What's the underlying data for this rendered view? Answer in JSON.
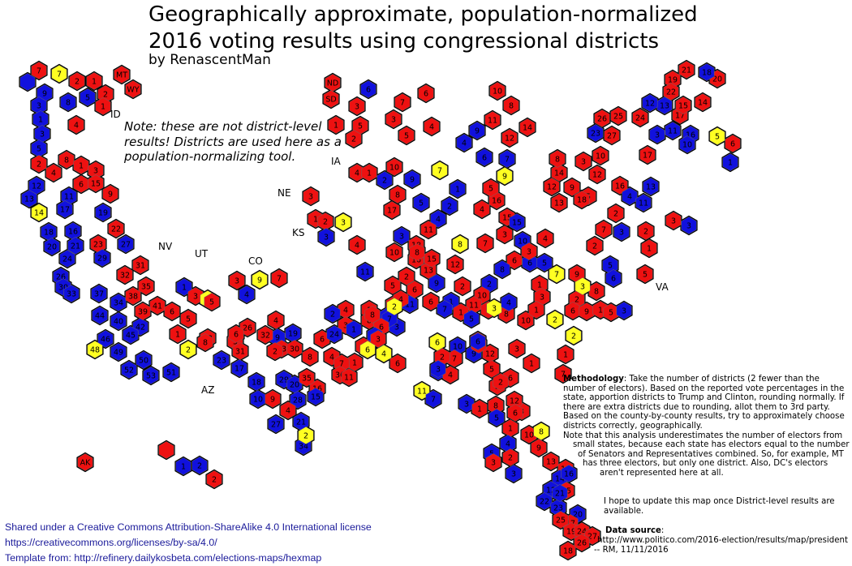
{
  "title_line1": "Geographically approximate, population-normalized",
  "title_line2": "2016 voting results using congressional districts",
  "byline": "by RenascentMan",
  "note": "Note: these are not district-level results!  Districts are used here as a population-normalizing tool.",
  "methodology": {
    "heading": "Methodology",
    "p1": ": Take the number of districts (2 fewer than the number of electors). Based on the reported vote percentages in the state, apportion districts to Trump and Clinton, rounding normally.  If there are extra districts due to rounding, allot them to 3rd party.  Based on the county-by-county results, try to approximately choose districts correctly, geographically.",
    "p2": "Note that this analysis underestimates the number of electors from",
    "p3": "small states, because each state has electors equal to the number",
    "p4": "of Senators and Representatives combined.  So, for example, MT",
    "p5": "has three electors, but only one district.  Also, DC's electors",
    "p6": "aren't represented here at all."
  },
  "hope": "I hope to update this map once District-level results are available.",
  "source": {
    "heading": "Data source",
    "colon": ":",
    "url": "http://www.politico.com/2016-election/results/map/president",
    "sig": "-- RM, 11/11/2016"
  },
  "license": {
    "line1": "Shared under a Creative Commons Attribution-ShareAlike 4.0 International license",
    "line2": "https://creativecommons.org/licenses/by-sa/4.0/",
    "line3": "Template from: http://refinery.dailykosbeta.com/elections-maps/hexmap"
  },
  "state_labels": {
    "id": "ID",
    "nv": "NV",
    "ut": "UT",
    "co": "CO",
    "az": "AZ",
    "ia": "IA",
    "ne": "NE",
    "ks": "KS",
    "va": "VA"
  },
  "legend_colors": {
    "trump": "#ee1111",
    "clinton": "#1111dd",
    "third_party": "#ffff22"
  },
  "districts": [
    {
      "c": "b",
      "n": ""
    },
    {
      "c": "r",
      "n": "7"
    },
    {
      "c": "y",
      "n": "7"
    },
    {
      "c": "r",
      "n": "2"
    },
    {
      "c": "r",
      "n": "1"
    },
    {
      "c": "r",
      "n": "MT"
    },
    {
      "c": "r",
      "n": "WY"
    },
    {
      "c": "b",
      "n": "9"
    },
    {
      "c": "b",
      "n": "3"
    },
    {
      "c": "b",
      "n": "8"
    },
    {
      "c": "b",
      "n": "5"
    },
    {
      "c": "r",
      "n": "2"
    },
    {
      "c": "r",
      "n": "1"
    },
    {
      "c": "b",
      "n": "1"
    },
    {
      "c": "b",
      "n": "3"
    },
    {
      "c": "b",
      "n": "5"
    },
    {
      "c": "r",
      "n": "4"
    },
    {
      "c": "r",
      "n": "2"
    },
    {
      "c": "r",
      "n": "4"
    },
    {
      "c": "r",
      "n": "8"
    },
    {
      "c": "r",
      "n": "1"
    },
    {
      "c": "r",
      "n": "3"
    },
    {
      "c": "b",
      "n": "12"
    },
    {
      "c": "b",
      "n": "11"
    },
    {
      "c": "r",
      "n": "6"
    },
    {
      "c": "r",
      "n": "15"
    },
    {
      "c": "r",
      "n": "9"
    },
    {
      "c": "b",
      "n": "13"
    },
    {
      "c": "y",
      "n": "14"
    },
    {
      "c": "b",
      "n": "17"
    },
    {
      "c": "b",
      "n": "16"
    },
    {
      "c": "b",
      "n": "19"
    },
    {
      "c": "r",
      "n": "22"
    },
    {
      "c": "b",
      "n": "18"
    },
    {
      "c": "b",
      "n": "20"
    },
    {
      "c": "b",
      "n": "21"
    },
    {
      "c": "r",
      "n": "23"
    },
    {
      "c": "b",
      "n": "27"
    },
    {
      "c": "b",
      "n": "24"
    },
    {
      "c": "b",
      "n": "26"
    },
    {
      "c": "b",
      "n": "29"
    },
    {
      "c": "r",
      "n": "31"
    },
    {
      "c": "r",
      "n": "32"
    },
    {
      "c": "b",
      "n": "30"
    },
    {
      "c": "b",
      "n": "33"
    },
    {
      "c": "b",
      "n": "37"
    },
    {
      "c": "b",
      "n": "34"
    },
    {
      "c": "r",
      "n": "35"
    },
    {
      "c": "r",
      "n": "38"
    },
    {
      "c": "r",
      "n": "41"
    },
    {
      "c": "b",
      "n": "44"
    },
    {
      "c": "b",
      "n": "40"
    },
    {
      "c": "b",
      "n": "42"
    },
    {
      "c": "r",
      "n": "39"
    },
    {
      "c": "b",
      "n": "46"
    },
    {
      "c": "b",
      "n": "45"
    },
    {
      "c": "y",
      "n": "48"
    },
    {
      "c": "b",
      "n": "49"
    },
    {
      "c": "b",
      "n": "50"
    },
    {
      "c": "b",
      "n": "52"
    },
    {
      "c": "b",
      "n": "53"
    },
    {
      "c": "b",
      "n": "51"
    },
    {
      "c": "r",
      "n": "ND"
    },
    {
      "c": "r",
      "n": "SD"
    },
    {
      "c": "b",
      "n": "6"
    },
    {
      "c": "r",
      "n": "3"
    },
    {
      "c": "r",
      "n": "5"
    },
    {
      "c": "r",
      "n": "2"
    },
    {
      "c": "r",
      "n": "1"
    },
    {
      "c": "r",
      "n": "7"
    },
    {
      "c": "r",
      "n": "6"
    },
    {
      "c": "r",
      "n": "3"
    },
    {
      "c": "r",
      "n": "5"
    },
    {
      "c": "r",
      "n": "4"
    },
    {
      "c": "r",
      "n": "10"
    },
    {
      "c": "r",
      "n": "8"
    },
    {
      "c": "r",
      "n": "11"
    },
    {
      "c": "r",
      "n": "14"
    },
    {
      "c": "b",
      "n": "9"
    },
    {
      "c": "r",
      "n": "12"
    },
    {
      "c": "b",
      "n": "6"
    },
    {
      "c": "b",
      "n": "7"
    },
    {
      "c": "b",
      "n": "4"
    },
    {
      "c": "r",
      "n": "4"
    },
    {
      "c": "r",
      "n": "1"
    },
    {
      "c": "b",
      "n": "2"
    },
    {
      "c": "r",
      "n": "3"
    },
    {
      "c": "r",
      "n": "1"
    },
    {
      "c": "r",
      "n": "2"
    },
    {
      "c": "y",
      "n": "3"
    },
    {
      "c": "b",
      "n": "3"
    },
    {
      "c": "r",
      "n": "4"
    },
    {
      "c": "r",
      "n": "10"
    },
    {
      "c": "b",
      "n": "9"
    },
    {
      "c": "y",
      "n": "7"
    },
    {
      "c": "r",
      "n": "8"
    },
    {
      "c": "b",
      "n": "5"
    },
    {
      "c": "b",
      "n": "4"
    },
    {
      "c": "r",
      "n": "17"
    },
    {
      "c": "b",
      "n": "3"
    },
    {
      "c": "r",
      "n": "18"
    },
    {
      "c": "r",
      "n": "16"
    },
    {
      "c": "r",
      "n": "13"
    },
    {
      "c": "r",
      "n": "10"
    },
    {
      "c": "r",
      "n": "11"
    },
    {
      "c": "r",
      "n": "15"
    },
    {
      "c": "r",
      "n": "12"
    },
    {
      "c": "b",
      "n": "1"
    },
    {
      "c": "b",
      "n": "2"
    },
    {
      "c": "y",
      "n": "9"
    },
    {
      "c": "r",
      "n": "14"
    },
    {
      "c": "r",
      "n": "12"
    },
    {
      "c": "r",
      "n": "13"
    },
    {
      "c": "r",
      "n": "16"
    },
    {
      "c": "r",
      "n": "15"
    },
    {
      "c": "r",
      "n": "5"
    },
    {
      "c": "r",
      "n": "4"
    },
    {
      "c": "r",
      "n": "3"
    },
    {
      "c": "r",
      "n": "7"
    },
    {
      "c": "b",
      "n": "15"
    },
    {
      "c": "b",
      "n": "10"
    },
    {
      "c": "y",
      "n": "8"
    },
    {
      "c": "b",
      "n": "6"
    },
    {
      "c": "b",
      "n": "5"
    },
    {
      "c": "r",
      "n": "19"
    },
    {
      "c": "r",
      "n": "21"
    },
    {
      "c": "r",
      "n": "20"
    },
    {
      "c": "b",
      "n": "18"
    },
    {
      "c": "r",
      "n": "22"
    },
    {
      "c": "b",
      "n": "13"
    },
    {
      "c": "r",
      "n": "17"
    },
    {
      "c": "r",
      "n": "15"
    },
    {
      "c": "r",
      "n": "14"
    },
    {
      "c": "b",
      "n": "12"
    },
    {
      "c": "b",
      "n": "16"
    },
    {
      "c": "r",
      "n": "26"
    },
    {
      "c": "r",
      "n": "25"
    },
    {
      "c": "r",
      "n": "24"
    },
    {
      "c": "r",
      "n": "27"
    },
    {
      "c": "b",
      "n": "11"
    },
    {
      "c": "b",
      "n": "23"
    },
    {
      "c": "b",
      "n": "3"
    },
    {
      "c": "b",
      "n": "10"
    },
    {
      "c": "y",
      "n": "5"
    },
    {
      "c": "r",
      "n": "6"
    },
    {
      "c": "b",
      "n": "1"
    },
    {
      "c": "r",
      "n": "3"
    },
    {
      "c": "r",
      "n": "10"
    },
    {
      "c": "r",
      "n": "17"
    },
    {
      "c": "r",
      "n": "8"
    },
    {
      "c": "r",
      "n": "12"
    },
    {
      "c": "r",
      "n": "16"
    },
    {
      "c": "b",
      "n": "4"
    },
    {
      "c": "r",
      "n": "5"
    },
    {
      "c": "r",
      "n": "18"
    },
    {
      "c": "r",
      "n": "9"
    },
    {
      "c": "b",
      "n": "13"
    },
    {
      "c": "b",
      "n": "11"
    },
    {
      "c": "r",
      "n": "3"
    },
    {
      "c": "b",
      "n": "3"
    },
    {
      "c": "r",
      "n": "2"
    },
    {
      "c": "b",
      "n": "3"
    },
    {
      "c": "r",
      "n": "7"
    },
    {
      "c": "r",
      "n": "2"
    },
    {
      "c": "b",
      "n": "5"
    },
    {
      "c": "y",
      "n": "7"
    },
    {
      "c": "r",
      "n": "9"
    },
    {
      "c": "r",
      "n": "1"
    },
    {
      "c": "r",
      "n": "3"
    },
    {
      "c": "r",
      "n": "2"
    },
    {
      "c": "r",
      "n": "1"
    },
    {
      "c": "r",
      "n": "5"
    },
    {
      "c": "b",
      "n": "6"
    },
    {
      "c": "r",
      "n": "4"
    },
    {
      "c": "r",
      "n": "3"
    },
    {
      "c": "r",
      "n": "6"
    },
    {
      "c": "b",
      "n": "8"
    },
    {
      "c": "b",
      "n": "2"
    },
    {
      "c": "r",
      "n": "10"
    },
    {
      "c": "r",
      "n": "2"
    },
    {
      "c": "r",
      "n": "11"
    },
    {
      "c": "b",
      "n": "1"
    },
    {
      "c": "b",
      "n": "9"
    },
    {
      "c": "b",
      "n": "11"
    },
    {
      "c": "r",
      "n": "4"
    },
    {
      "c": "r",
      "n": "2"
    },
    {
      "c": "r",
      "n": "6"
    },
    {
      "c": "r",
      "n": "8"
    },
    {
      "c": "b",
      "n": "11"
    },
    {
      "c": "r",
      "n": "5"
    },
    {
      "c": "r",
      "n": "4"
    },
    {
      "c": "r",
      "n": "1"
    },
    {
      "c": "b",
      "n": "2"
    },
    {
      "c": "r",
      "n": "8"
    },
    {
      "c": "b",
      "n": "3"
    },
    {
      "c": "b",
      "n": "7"
    },
    {
      "c": "r",
      "n": "6"
    },
    {
      "c": "b",
      "n": "4"
    },
    {
      "c": "r",
      "n": "6"
    },
    {
      "c": "b",
      "n": "7"
    },
    {
      "c": "r",
      "n": "1"
    },
    {
      "c": "b",
      "n": "5"
    },
    {
      "c": "r",
      "n": "8"
    },
    {
      "c": "r",
      "n": "10"
    },
    {
      "c": "r",
      "n": "1"
    },
    {
      "c": "y",
      "n": "2"
    },
    {
      "c": "r",
      "n": "3"
    },
    {
      "c": "y",
      "n": "3"
    },
    {
      "c": "b",
      "n": "4"
    },
    {
      "c": "r",
      "n": "2"
    },
    {
      "c": "r",
      "n": "6"
    },
    {
      "c": "r",
      "n": "9"
    },
    {
      "c": "r",
      "n": "1"
    },
    {
      "c": "r",
      "n": "5"
    },
    {
      "c": "b",
      "n": "3"
    },
    {
      "c": "r",
      "n": "8"
    },
    {
      "c": "y",
      "n": "3"
    },
    {
      "c": "r",
      "n": "4"
    },
    {
      "c": "b",
      "n": "2"
    },
    {
      "c": "r",
      "n": "3"
    },
    {
      "c": "b",
      "n": "1"
    },
    {
      "c": "r",
      "n": "4"
    },
    {
      "c": "r",
      "n": "6"
    },
    {
      "c": "y",
      "n": "4"
    },
    {
      "c": "r",
      "n": "3"
    },
    {
      "c": "b",
      "n": "10"
    },
    {
      "c": "r",
      "n": "7"
    },
    {
      "c": "r",
      "n": "13"
    },
    {
      "c": "r",
      "n": "12"
    },
    {
      "c": "b",
      "n": "9"
    },
    {
      "c": "b",
      "n": "8"
    },
    {
      "c": "r",
      "n": "4"
    },
    {
      "c": "r",
      "n": "5"
    },
    {
      "c": "r",
      "n": "6"
    },
    {
      "c": "r",
      "n": "7"
    },
    {
      "c": "r",
      "n": "3"
    },
    {
      "c": "r",
      "n": "1"
    },
    {
      "c": "y",
      "n": "2"
    },
    {
      "c": "r",
      "n": "1"
    },
    {
      "c": "y",
      "n": "2"
    },
    {
      "c": "r",
      "n": "8"
    },
    {
      "c": "r",
      "n": "5"
    },
    {
      "c": "r",
      "n": "4"
    },
    {
      "c": "b",
      "n": "9"
    },
    {
      "c": "r",
      "n": "6"
    },
    {
      "c": "r",
      "n": "13"
    },
    {
      "c": "r",
      "n": "26"
    },
    {
      "c": "r",
      "n": "32"
    },
    {
      "c": "b",
      "n": "19"
    },
    {
      "c": "b",
      "n": "24"
    },
    {
      "c": "r",
      "n": "33"
    },
    {
      "c": "r",
      "n": "30"
    },
    {
      "c": "r",
      "n": "2"
    },
    {
      "c": "r",
      "n": "8"
    },
    {
      "c": "r",
      "n": "4"
    },
    {
      "c": "y",
      "n": "6"
    },
    {
      "c": "r",
      "n": "1"
    },
    {
      "c": "r",
      "n": "7"
    },
    {
      "c": "r",
      "n": "36"
    },
    {
      "c": "r",
      "n": "16"
    },
    {
      "c": "r",
      "n": "11"
    },
    {
      "c": "b",
      "n": "23"
    },
    {
      "c": "r",
      "n": "31"
    },
    {
      "c": "b",
      "n": "17"
    },
    {
      "c": "b",
      "n": "18"
    },
    {
      "c": "b",
      "n": "29"
    },
    {
      "c": "b",
      "n": "20"
    },
    {
      "c": "r",
      "n": "35"
    },
    {
      "c": "b",
      "n": "10"
    },
    {
      "c": "r",
      "n": "9"
    },
    {
      "c": "b",
      "n": "28"
    },
    {
      "c": "b",
      "n": "15"
    },
    {
      "c": "b",
      "n": "21"
    },
    {
      "c": "b",
      "n": "34"
    },
    {
      "c": "b",
      "n": "27"
    },
    {
      "c": "r",
      "n": "4"
    },
    {
      "c": "y",
      "n": "2"
    },
    {
      "c": "b",
      "n": "1"
    },
    {
      "c": "r",
      "n": "3"
    },
    {
      "c": "y",
      "n": "3"
    },
    {
      "c": "r",
      "n": "5"
    },
    {
      "c": "b",
      "n": "4"
    },
    {
      "c": "r",
      "n": "3"
    },
    {
      "c": "y",
      "n": "9"
    },
    {
      "c": "r",
      "n": "7"
    },
    {
      "c": "r",
      "n": "8"
    },
    {
      "c": "y",
      "n": "2"
    },
    {
      "c": "r",
      "n": "1"
    },
    {
      "c": "r",
      "n": "6"
    },
    {
      "c": "r",
      "n": "6"
    },
    {
      "c": "r",
      "n": "5"
    },
    {
      "c": "y",
      "n": "6"
    },
    {
      "c": "r",
      "n": "2"
    },
    {
      "c": "b",
      "n": "3"
    },
    {
      "c": "r",
      "n": "4"
    },
    {
      "c": "y",
      "n": "11"
    },
    {
      "c": "b",
      "n": "7"
    },
    {
      "c": "b",
      "n": "6"
    },
    {
      "c": "b",
      "n": "3"
    },
    {
      "c": "r",
      "n": "1"
    },
    {
      "c": "r",
      "n": "2"
    },
    {
      "c": "r",
      "n": "2"
    },
    {
      "c": "r",
      "n": "3"
    },
    {
      "c": "r",
      "n": "12"
    },
    {
      "c": "r",
      "n": "1"
    },
    {
      "c": "b",
      "n": "4"
    },
    {
      "c": "b",
      "n": "5"
    },
    {
      "c": "r",
      "n": "3"
    },
    {
      "c": "r",
      "n": "2"
    },
    {
      "c": "b",
      "n": "3"
    },
    {
      "c": "r",
      "n": "8"
    },
    {
      "c": "b",
      "n": "5"
    },
    {
      "c": "r",
      "n": "6"
    },
    {
      "c": "r",
      "n": "10"
    },
    {
      "c": "y",
      "n": "8"
    },
    {
      "c": "r",
      "n": "9"
    },
    {
      "c": "r",
      "n": "13"
    },
    {
      "c": "r",
      "n": "11"
    },
    {
      "c": "b",
      "n": "14"
    },
    {
      "c": "r",
      "n": "15"
    },
    {
      "c": "b",
      "n": "12"
    },
    {
      "c": "b",
      "n": "22"
    },
    {
      "c": "b",
      "n": "23"
    },
    {
      "c": "b",
      "n": "20"
    },
    {
      "c": "r",
      "n": "17"
    },
    {
      "c": "r",
      "n": "19"
    },
    {
      "c": "r",
      "n": "25"
    },
    {
      "c": "r",
      "n": "24"
    },
    {
      "c": "r",
      "n": "27"
    },
    {
      "c": "r",
      "n": "26"
    },
    {
      "c": "r",
      "n": "18"
    },
    {
      "c": "b",
      "n": "21"
    },
    {
      "c": "b",
      "n": "16"
    },
    {
      "c": "r",
      "n": "AK"
    },
    {
      "c": "r",
      "n": ""
    },
    {
      "c": "b",
      "n": "1"
    },
    {
      "c": "r",
      "n": "2"
    },
    {
      "c": "b",
      "n": "2"
    }
  ]
}
